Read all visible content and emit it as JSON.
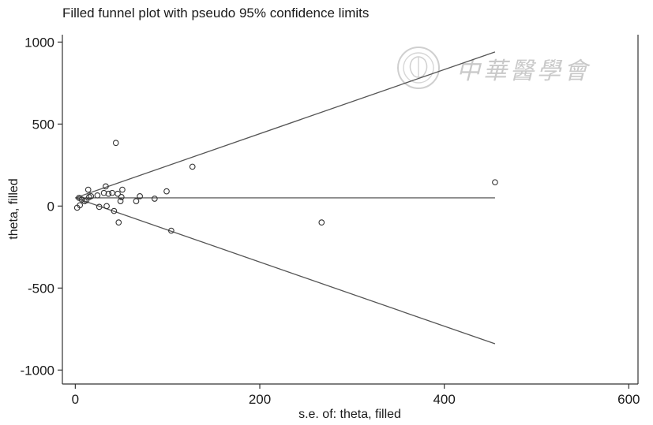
{
  "chart_data": {
    "type": "scatter",
    "title": "Filled funnel plot with pseudo 95% confidence limits",
    "xlabel": "s.e. of: theta, filled",
    "ylabel": "theta, filled",
    "xlim": [
      -14,
      610
    ],
    "ylim": [
      -1085,
      1045
    ],
    "xticks": [
      0,
      200,
      400,
      600
    ],
    "yticks": [
      -1000,
      -500,
      0,
      500,
      1000
    ],
    "pooled_estimate": 50,
    "ci_limit_at_max_se": {
      "se": 455,
      "upper": 940,
      "lower": -840
    },
    "points": [
      {
        "x": 2,
        "y": -10
      },
      {
        "x": 4,
        "y": 50
      },
      {
        "x": 5,
        "y": 5
      },
      {
        "x": 7,
        "y": 40
      },
      {
        "x": 10,
        "y": 30
      },
      {
        "x": 12,
        "y": 35
      },
      {
        "x": 14,
        "y": 100
      },
      {
        "x": 15,
        "y": 55
      },
      {
        "x": 17,
        "y": 60
      },
      {
        "x": 24,
        "y": 65
      },
      {
        "x": 26,
        "y": -5
      },
      {
        "x": 31,
        "y": 80
      },
      {
        "x": 33,
        "y": 120
      },
      {
        "x": 34,
        "y": 0
      },
      {
        "x": 36,
        "y": 75
      },
      {
        "x": 40,
        "y": 80
      },
      {
        "x": 42,
        "y": -30
      },
      {
        "x": 44,
        "y": 385
      },
      {
        "x": 46,
        "y": 75
      },
      {
        "x": 47,
        "y": -100
      },
      {
        "x": 49,
        "y": 30
      },
      {
        "x": 50,
        "y": 55
      },
      {
        "x": 51,
        "y": 100
      },
      {
        "x": 66,
        "y": 30
      },
      {
        "x": 70,
        "y": 60
      },
      {
        "x": 86,
        "y": 45
      },
      {
        "x": 99,
        "y": 90
      },
      {
        "x": 104,
        "y": -150
      },
      {
        "x": 127,
        "y": 240
      },
      {
        "x": 267,
        "y": -100
      },
      {
        "x": 455,
        "y": 145
      }
    ]
  },
  "watermark": {
    "text": "中華醫學會",
    "seal_icon": "cma-seal-icon"
  },
  "colors": {
    "axis": "#333333",
    "lines": "#555555",
    "points": "#333333",
    "watermark": "#c9c9c9"
  }
}
